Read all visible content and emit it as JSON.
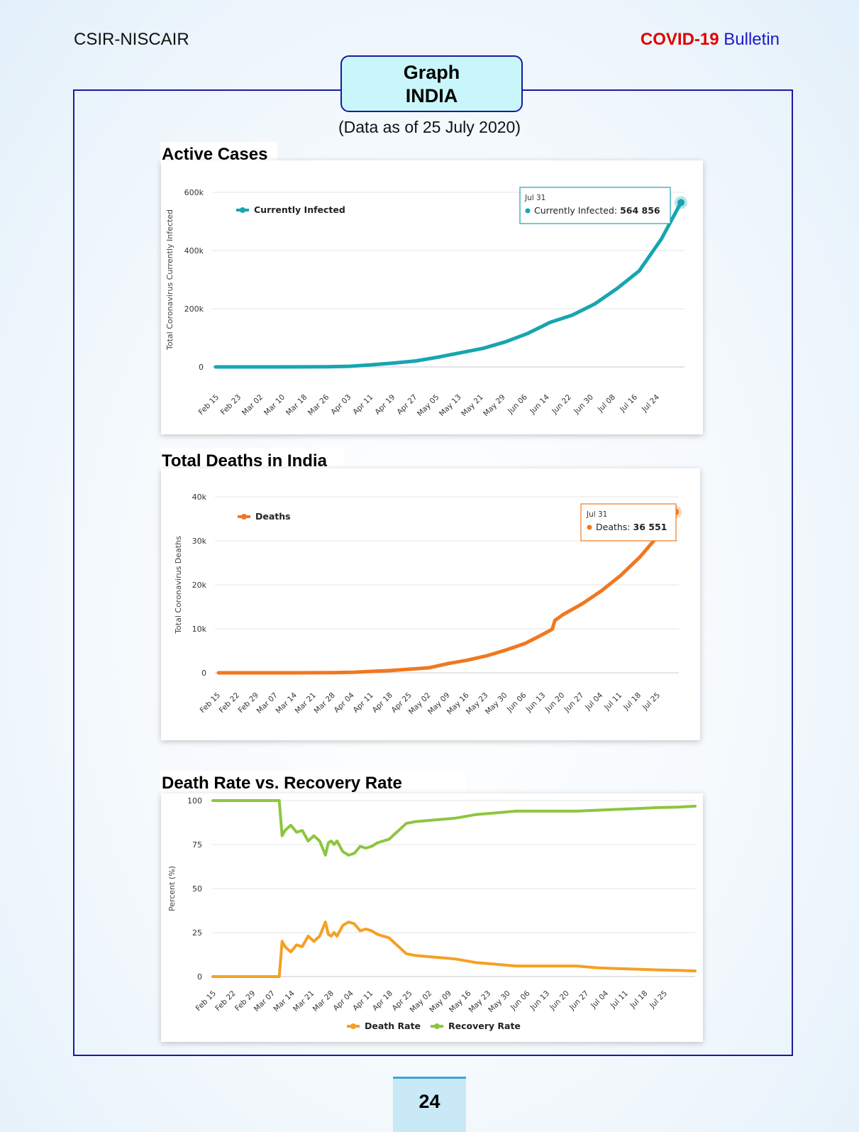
{
  "header": {
    "org": "CSIR-NISCAIR",
    "bulletin_red": "COVID-19",
    "bulletin_blue": "Bulletin"
  },
  "title": {
    "line1": "Graph",
    "line2": "INDIA"
  },
  "as_of": "(Data as of 25 July 2020)",
  "page_number": "24",
  "colors": {
    "teal": "#17a5b0",
    "orange": "#f07820",
    "rate_orange": "#f5a023",
    "green": "#8cc63f",
    "frame": "#1a1aa0"
  },
  "chart_data": [
    {
      "type": "line",
      "section_title": "Active Cases",
      "ylabel": "Total Coronavirus Currently Infected",
      "xlabel": "",
      "ylim": [
        0,
        600000
      ],
      "y_ticks": [
        0,
        200000,
        400000,
        600000
      ],
      "y_tick_labels": [
        "0",
        "200k",
        "400k",
        "600k"
      ],
      "x_tick_labels": [
        "Feb 15",
        "Feb 23",
        "Mar 02",
        "Mar 10",
        "Mar 18",
        "Mar 26",
        "Apr 03",
        "Apr 11",
        "Apr 19",
        "Apr 27",
        "May 05",
        "May 13",
        "May 21",
        "May 29",
        "Jun 06",
        "Jun 14",
        "Jun 22",
        "Jun 30",
        "Jul 08",
        "Jul 16",
        "Jul 24"
      ],
      "legend": "top-left",
      "tooltip": {
        "date": "Jul 31",
        "label": "Currently Infected",
        "value": "564 856"
      },
      "series": [
        {
          "name": "Currently Infected",
          "x": [
            "Feb 15",
            "Mar 02",
            "Mar 18",
            "Mar 26",
            "Apr 03",
            "Apr 11",
            "Apr 19",
            "Apr 27",
            "May 05",
            "May 13",
            "May 21",
            "May 29",
            "Jun 06",
            "Jun 14",
            "Jun 22",
            "Jun 30",
            "Jul 08",
            "Jul 16",
            "Jul 24",
            "Jul 31"
          ],
          "values": [
            3,
            2,
            130,
            600,
            2300,
            7400,
            13300,
            20800,
            34000,
            49000,
            64000,
            86000,
            115000,
            153000,
            178000,
            216000,
            269000,
            330000,
            440000,
            564856
          ]
        }
      ]
    },
    {
      "type": "line",
      "section_title": "Total Deaths in India",
      "ylabel": "Total Coronavirus Deaths",
      "xlabel": "",
      "ylim": [
        0,
        40000
      ],
      "y_ticks": [
        0,
        10000,
        20000,
        30000,
        40000
      ],
      "y_tick_labels": [
        "0",
        "10k",
        "20k",
        "30k",
        "40k"
      ],
      "x_tick_labels": [
        "Feb 15",
        "Feb 22",
        "Feb 29",
        "Mar 07",
        "Mar 14",
        "Mar 21",
        "Mar 28",
        "Apr 04",
        "Apr 11",
        "Apr 18",
        "Apr 25",
        "May 02",
        "May 09",
        "May 16",
        "May 23",
        "May 30",
        "Jun 06",
        "Jun 13",
        "Jun 20",
        "Jun 27",
        "Jul 04",
        "Jul 11",
        "Jul 18",
        "Jul 25"
      ],
      "legend": "top-left",
      "tooltip": {
        "date": "Jul 31",
        "label": "Deaths",
        "value": "36 551"
      },
      "series": [
        {
          "name": "Deaths",
          "x": [
            "Feb 15",
            "Mar 14",
            "Mar 28",
            "Apr 04",
            "Apr 11",
            "Apr 18",
            "Apr 25",
            "May 02",
            "May 09",
            "May 16",
            "May 23",
            "May 30",
            "Jun 06",
            "Jun 13",
            "Jun 16",
            "Jun 17",
            "Jun 20",
            "Jun 27",
            "Jul 04",
            "Jul 11",
            "Jul 18",
            "Jul 25",
            "Jul 31"
          ],
          "values": [
            0,
            2,
            25,
            110,
            330,
            530,
            820,
            1150,
            2110,
            2870,
            3860,
            5160,
            6640,
            8880,
            9900,
            11900,
            13250,
            15690,
            18650,
            22120,
            26270,
            31360,
            36551
          ]
        }
      ]
    },
    {
      "type": "line",
      "section_title": "Death Rate vs. Recovery Rate",
      "ylabel": "Percent (%)",
      "xlabel": "",
      "ylim": [
        0,
        100
      ],
      "y_ticks": [
        0,
        25,
        50,
        75,
        100
      ],
      "y_tick_labels": [
        "0",
        "25",
        "50",
        "75",
        "100"
      ],
      "x_tick_labels": [
        "Feb 15",
        "Feb 22",
        "Feb 29",
        "Mar 07",
        "Mar 14",
        "Mar 21",
        "Mar 28",
        "Apr 04",
        "Apr 11",
        "Apr 18",
        "Apr 25",
        "May 02",
        "May 09",
        "May 16",
        "May 23",
        "May 30",
        "Jun 06",
        "Jun 13",
        "Jun 20",
        "Jun 27",
        "Jul 04",
        "Jul 11",
        "Jul 18",
        "Jul 25"
      ],
      "legend": "bottom-center",
      "series": [
        {
          "name": "Death Rate",
          "x": [
            "Feb 15",
            "Mar 09",
            "Mar 10",
            "Mar 11",
            "Mar 13",
            "Mar 15",
            "Mar 17",
            "Mar 19",
            "Mar 21",
            "Mar 23",
            "Mar 25",
            "Mar 26",
            "Mar 27",
            "Mar 28",
            "Mar 29",
            "Mar 31",
            "Apr 02",
            "Apr 04",
            "Apr 06",
            "Apr 08",
            "Apr 10",
            "Apr 12",
            "Apr 14",
            "Apr 16",
            "Apr 18",
            "Apr 20",
            "Apr 22",
            "Apr 25",
            "May 02",
            "May 09",
            "May 16",
            "May 23",
            "May 30",
            "Jun 06",
            "Jun 13",
            "Jun 17",
            "Jun 20",
            "Jun 27",
            "Jul 04",
            "Jul 11",
            "Jul 18",
            "Jul 25",
            "Jul 31"
          ],
          "values": [
            0,
            0,
            20,
            17,
            14,
            18,
            17,
            23,
            20,
            23,
            31,
            24,
            23,
            25,
            23,
            29,
            31,
            30,
            26,
            27,
            26,
            24,
            23,
            22,
            19,
            16,
            13,
            12,
            11,
            10,
            8,
            7,
            6,
            6,
            6,
            6,
            6,
            5,
            4.5,
            4.2,
            3.8,
            3.5,
            3.2
          ]
        },
        {
          "name": "Recovery Rate",
          "x": [
            "Feb 15",
            "Mar 09",
            "Mar 10",
            "Mar 11",
            "Mar 13",
            "Mar 15",
            "Mar 17",
            "Mar 19",
            "Mar 21",
            "Mar 23",
            "Mar 25",
            "Mar 26",
            "Mar 27",
            "Mar 28",
            "Mar 29",
            "Mar 31",
            "Apr 02",
            "Apr 04",
            "Apr 06",
            "Apr 08",
            "Apr 10",
            "Apr 12",
            "Apr 14",
            "Apr 16",
            "Apr 18",
            "Apr 20",
            "Apr 22",
            "Apr 25",
            "May 02",
            "May 09",
            "May 16",
            "May 23",
            "May 30",
            "Jun 06",
            "Jun 13",
            "Jun 17",
            "Jun 20",
            "Jun 27",
            "Jul 04",
            "Jul 11",
            "Jul 18",
            "Jul 25",
            "Jul 31"
          ],
          "values": [
            100,
            100,
            80,
            83,
            86,
            82,
            83,
            77,
            80,
            77,
            69,
            76,
            77,
            75,
            77,
            71,
            69,
            70,
            74,
            73,
            74,
            76,
            77,
            78,
            81,
            84,
            87,
            88,
            89,
            90,
            92,
            93,
            94,
            94,
            94,
            94,
            94,
            94.5,
            95,
            95.5,
            96,
            96.3,
            96.8
          ]
        }
      ]
    }
  ]
}
